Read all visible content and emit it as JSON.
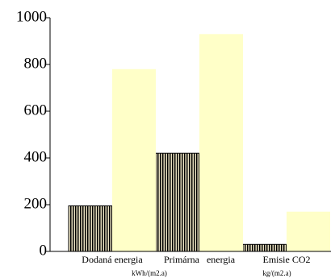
{
  "chart_data": {
    "type": "bar",
    "categories": [
      "Dodaná energia",
      "Primárna   energia",
      "Emisie CO2"
    ],
    "series": [
      {
        "color": "#000000",
        "values": [
          195,
          420,
          30
        ]
      },
      {
        "color": "#ffffc8",
        "values": [
          780,
          930,
          170
        ]
      }
    ],
    "annotations": [
      "kWh/(m2.a)",
      "kg/(m2.a)"
    ],
    "ylim": [
      0,
      1000
    ],
    "yticks": [
      0,
      200,
      400,
      600,
      800,
      1000
    ],
    "grid": false
  }
}
